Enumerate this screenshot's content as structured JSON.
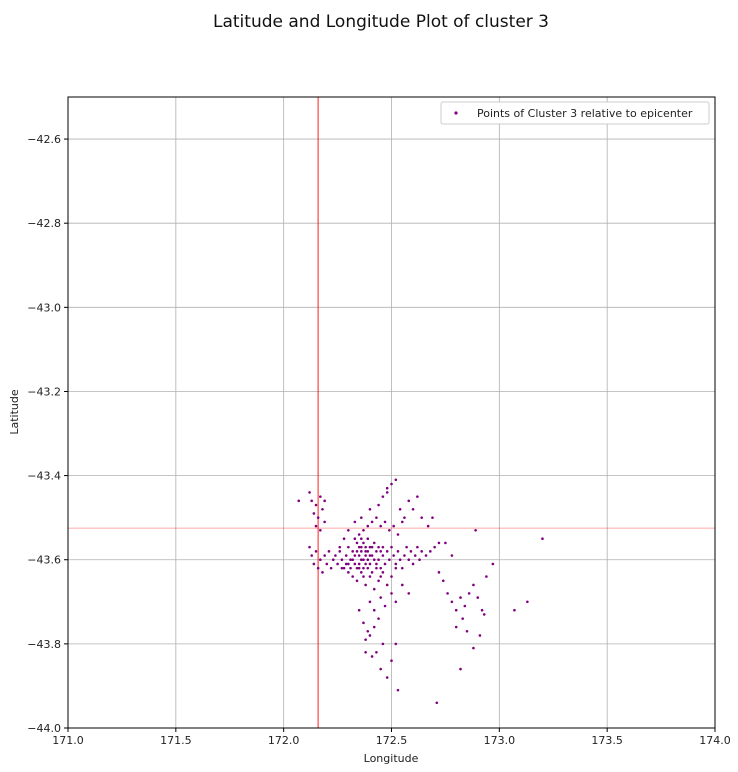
{
  "chart_data": {
    "type": "scatter",
    "title": "Latitude and Longitude Plot of cluster 3",
    "xlabel": "Longitude",
    "ylabel": "Latitude",
    "xlim": [
      171.0,
      174.0
    ],
    "ylim": [
      -44.0,
      -42.5
    ],
    "xticks": [
      "171.0",
      "171.5",
      "172.0",
      "172.5",
      "173.0",
      "173.5",
      "174.0"
    ],
    "yticks": [
      "−42.6",
      "−42.8",
      "−43.0",
      "−43.2",
      "−43.4",
      "−43.6",
      "−43.8",
      "−44.0"
    ],
    "xtick_values": [
      171.0,
      171.5,
      172.0,
      172.5,
      173.0,
      173.5,
      174.0
    ],
    "ytick_values": [
      -42.6,
      -42.8,
      -43.0,
      -43.2,
      -43.4,
      -43.6,
      -43.8,
      -44.0
    ],
    "grid": true,
    "legend_position": "top-right",
    "point_color": "#800080",
    "reference_line_color": "#ff0000",
    "reference_lines": {
      "x": 172.16,
      "y": -43.525
    },
    "series": [
      {
        "name": "Points of Cluster 3 relative to epicenter",
        "color": "#800080",
        "points": [
          [
            172.07,
            -43.46
          ],
          [
            172.12,
            -43.44
          ],
          [
            172.13,
            -43.46
          ],
          [
            172.15,
            -43.47
          ],
          [
            172.17,
            -43.45
          ],
          [
            172.19,
            -43.46
          ],
          [
            172.14,
            -43.49
          ],
          [
            172.16,
            -43.5
          ],
          [
            172.18,
            -43.48
          ],
          [
            172.19,
            -43.51
          ],
          [
            172.17,
            -43.53
          ],
          [
            172.15,
            -43.52
          ],
          [
            172.12,
            -43.57
          ],
          [
            172.13,
            -43.59
          ],
          [
            172.14,
            -43.61
          ],
          [
            172.15,
            -43.58
          ],
          [
            172.16,
            -43.62
          ],
          [
            172.17,
            -43.6
          ],
          [
            172.18,
            -43.63
          ],
          [
            172.19,
            -43.59
          ],
          [
            172.2,
            -43.61
          ],
          [
            172.21,
            -43.58
          ],
          [
            172.22,
            -43.62
          ],
          [
            172.23,
            -43.6
          ],
          [
            172.24,
            -43.59
          ],
          [
            172.25,
            -43.61
          ],
          [
            172.26,
            -43.58
          ],
          [
            172.27,
            -43.6
          ],
          [
            172.28,
            -43.62
          ],
          [
            172.29,
            -43.59
          ],
          [
            172.3,
            -43.57
          ],
          [
            172.31,
            -43.6
          ],
          [
            172.32,
            -43.58
          ],
          [
            172.33,
            -43.61
          ],
          [
            172.34,
            -43.56
          ],
          [
            172.35,
            -43.59
          ],
          [
            172.36,
            -43.57
          ],
          [
            172.37,
            -43.6
          ],
          [
            172.38,
            -43.58
          ],
          [
            172.39,
            -43.55
          ],
          [
            172.4,
            -43.57
          ],
          [
            172.41,
            -43.59
          ],
          [
            172.42,
            -43.56
          ],
          [
            172.43,
            -43.58
          ],
          [
            172.44,
            -43.6
          ],
          [
            172.45,
            -43.62
          ],
          [
            172.46,
            -43.59
          ],
          [
            172.47,
            -43.61
          ],
          [
            172.48,
            -43.58
          ],
          [
            172.49,
            -43.6
          ],
          [
            172.5,
            -43.57
          ],
          [
            172.51,
            -43.59
          ],
          [
            172.52,
            -43.61
          ],
          [
            172.53,
            -43.58
          ],
          [
            172.54,
            -43.6
          ],
          [
            172.55,
            -43.62
          ],
          [
            172.56,
            -43.59
          ],
          [
            172.57,
            -43.57
          ],
          [
            172.58,
            -43.6
          ],
          [
            172.59,
            -43.58
          ],
          [
            172.6,
            -43.61
          ],
          [
            172.61,
            -43.59
          ],
          [
            172.62,
            -43.57
          ],
          [
            172.63,
            -43.6
          ],
          [
            172.64,
            -43.58
          ],
          [
            172.66,
            -43.59
          ],
          [
            172.68,
            -43.58
          ],
          [
            172.7,
            -43.57
          ],
          [
            172.72,
            -43.56
          ],
          [
            172.3,
            -43.63
          ],
          [
            172.32,
            -43.64
          ],
          [
            172.34,
            -43.65
          ],
          [
            172.36,
            -43.63
          ],
          [
            172.38,
            -43.66
          ],
          [
            172.4,
            -43.64
          ],
          [
            172.42,
            -43.67
          ],
          [
            172.44,
            -43.65
          ],
          [
            172.46,
            -43.63
          ],
          [
            172.48,
            -43.66
          ],
          [
            172.5,
            -43.64
          ],
          [
            172.52,
            -43.62
          ],
          [
            172.35,
            -43.62
          ],
          [
            172.37,
            -43.64
          ],
          [
            172.39,
            -43.62
          ],
          [
            172.41,
            -43.63
          ],
          [
            172.43,
            -43.62
          ],
          [
            172.45,
            -43.64
          ],
          [
            172.33,
            -43.55
          ],
          [
            172.35,
            -43.54
          ],
          [
            172.37,
            -43.53
          ],
          [
            172.39,
            -43.52
          ],
          [
            172.41,
            -43.51
          ],
          [
            172.43,
            -43.5
          ],
          [
            172.45,
            -43.52
          ],
          [
            172.47,
            -43.51
          ],
          [
            172.49,
            -43.53
          ],
          [
            172.51,
            -43.52
          ],
          [
            172.53,
            -43.54
          ],
          [
            172.55,
            -43.51
          ],
          [
            172.4,
            -43.48
          ],
          [
            172.44,
            -43.47
          ],
          [
            172.46,
            -43.45
          ],
          [
            172.48,
            -43.44
          ],
          [
            172.5,
            -43.42
          ],
          [
            172.52,
            -43.41
          ],
          [
            172.54,
            -43.48
          ],
          [
            172.56,
            -43.5
          ],
          [
            172.58,
            -43.46
          ],
          [
            172.6,
            -43.48
          ],
          [
            172.62,
            -43.45
          ],
          [
            172.64,
            -43.5
          ],
          [
            172.67,
            -43.52
          ],
          [
            172.69,
            -43.5
          ],
          [
            172.48,
            -43.43
          ],
          [
            172.28,
            -43.55
          ],
          [
            172.3,
            -43.53
          ],
          [
            172.33,
            -43.51
          ],
          [
            172.36,
            -43.5
          ],
          [
            172.26,
            -43.57
          ],
          [
            172.36,
            -43.55
          ],
          [
            172.37,
            -43.56
          ],
          [
            172.38,
            -43.57
          ],
          [
            172.38,
            -43.59
          ],
          [
            172.39,
            -43.6
          ],
          [
            172.4,
            -43.61
          ],
          [
            172.36,
            -43.6
          ],
          [
            172.35,
            -43.61
          ],
          [
            172.34,
            -43.62
          ],
          [
            172.37,
            -43.62
          ],
          [
            172.39,
            -43.58
          ],
          [
            172.41,
            -43.57
          ],
          [
            172.42,
            -43.6
          ],
          [
            172.43,
            -43.61
          ],
          [
            172.36,
            -43.58
          ],
          [
            172.35,
            -43.57
          ],
          [
            172.38,
            -43.61
          ],
          [
            172.4,
            -43.59
          ],
          [
            172.44,
            -43.57
          ],
          [
            172.45,
            -43.58
          ],
          [
            172.46,
            -43.57
          ],
          [
            172.31,
            -43.62
          ],
          [
            172.29,
            -43.61
          ],
          [
            172.27,
            -43.62
          ],
          [
            172.33,
            -43.59
          ],
          [
            172.34,
            -43.58
          ],
          [
            172.32,
            -43.6
          ],
          [
            172.3,
            -43.61
          ],
          [
            172.4,
            -43.7
          ],
          [
            172.42,
            -43.72
          ],
          [
            172.45,
            -43.69
          ],
          [
            172.47,
            -43.71
          ],
          [
            172.5,
            -43.68
          ],
          [
            172.52,
            -43.7
          ],
          [
            172.55,
            -43.66
          ],
          [
            172.58,
            -43.68
          ],
          [
            172.35,
            -43.72
          ],
          [
            172.37,
            -43.75
          ],
          [
            172.39,
            -43.77
          ],
          [
            172.38,
            -43.79
          ],
          [
            172.4,
            -43.78
          ],
          [
            172.42,
            -43.76
          ],
          [
            172.44,
            -43.74
          ],
          [
            172.41,
            -43.83
          ],
          [
            172.43,
            -43.82
          ],
          [
            172.45,
            -43.86
          ],
          [
            172.38,
            -43.82
          ],
          [
            172.46,
            -43.8
          ],
          [
            172.5,
            -43.84
          ],
          [
            172.52,
            -43.8
          ],
          [
            172.48,
            -43.88
          ],
          [
            172.53,
            -43.91
          ],
          [
            172.75,
            -43.56
          ],
          [
            172.78,
            -43.59
          ],
          [
            172.72,
            -43.63
          ],
          [
            172.74,
            -43.65
          ],
          [
            172.76,
            -43.68
          ],
          [
            172.78,
            -43.7
          ],
          [
            172.8,
            -43.72
          ],
          [
            172.82,
            -43.69
          ],
          [
            172.84,
            -43.71
          ],
          [
            172.86,
            -43.68
          ],
          [
            172.88,
            -43.66
          ],
          [
            172.9,
            -43.69
          ],
          [
            172.92,
            -43.72
          ],
          [
            172.94,
            -43.64
          ],
          [
            172.97,
            -43.61
          ],
          [
            172.89,
            -43.53
          ],
          [
            172.8,
            -43.76
          ],
          [
            172.83,
            -43.74
          ],
          [
            172.85,
            -43.77
          ],
          [
            172.91,
            -43.78
          ],
          [
            172.88,
            -43.81
          ],
          [
            172.82,
            -43.86
          ],
          [
            172.93,
            -43.73
          ],
          [
            173.07,
            -43.72
          ],
          [
            173.13,
            -43.7
          ],
          [
            173.2,
            -43.55
          ],
          [
            172.71,
            -43.94
          ]
        ]
      }
    ]
  }
}
